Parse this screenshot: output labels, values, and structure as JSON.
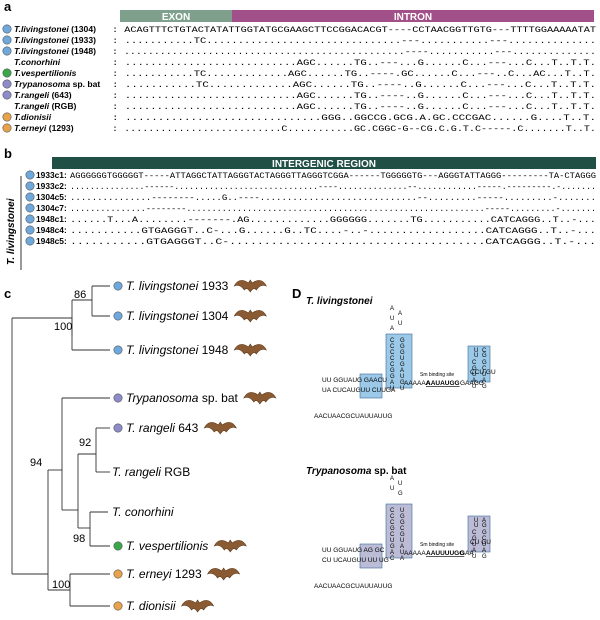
{
  "colors": {
    "blue": "#6fa8dc",
    "green": "#3aa84a",
    "purple": "#8e8cc8",
    "orange": "#e8a24a",
    "exon": "#7fa08c",
    "intron": "#a2508a",
    "intergenic": "#1f4f45",
    "box_blue": "#9cc9e8",
    "box_grey": "#bcbcd6"
  },
  "panel_a": {
    "letter": "a",
    "exon_label": "EXON",
    "intron_label": "INTRON",
    "rows": [
      {
        "dot": "blue",
        "name": "T.livingstonei",
        "suffix": " (1304)",
        "seq": ": ACAGTTTCTGTACTATATTGGTATGCGAAGCTTCCGGACACGT----CCTAACGGTTGTG---TTTTGGAAAAATAT"
      },
      {
        "dot": "blue",
        "name": "T.livingstonei",
        "suffix": " (1933)",
        "seq": ": ...........TC...............................---...........---.............."
      },
      {
        "dot": "blue",
        "name": "T.livingstonei",
        "suffix": " (1948)",
        "seq": ": ...............................................----...........---.............."
      },
      {
        "dot": "",
        "name": "T.conorhini",
        "suffix": "",
        "seq": ": ...........................AGC......TG..---...G......C...---...C...T..T.T."
      },
      {
        "dot": "green",
        "name": "T.vespertilionis",
        "suffix": "",
        "seq": ": ...........TC.............AGC......TG..----.GC......C...---..C...AC...T..T."
      },
      {
        "dot": "purple",
        "name": "Trypanosoma",
        "suffix": " sp. bat",
        "seq": ": ...........TC.............AGC......TG..----..G......C...---...C...T..T.T."
      },
      {
        "dot": "purple",
        "name": "T.rangeli",
        "suffix": " (643)",
        "seq": ": ...........................AGC......TG..----..G......C...---...C...T..T.T."
      },
      {
        "dot": "",
        "name": "T.rangeli",
        "suffix": " (RGB)",
        "seq": ": ...........................AGC......TG..----..G......C...---...C...T..T.T."
      },
      {
        "dot": "orange",
        "name": "T.dionisii",
        "suffix": "",
        "seq": ": ..............................GGG..GGCCG.GCG.A.GC.CCCGAC......G....T..T."
      },
      {
        "dot": "orange",
        "name": "T.erneyi",
        "suffix": " (1293)",
        "seq": ": ..........................C...........GC.CGGC-G--CG.C.G.T.C-----.C.......T..T."
      }
    ]
  },
  "panel_b": {
    "letter": "b",
    "region_label": "INTERGENIC REGION",
    "side_label": "T. livingstonei",
    "rows": [
      {
        "name": "1933c1:",
        "seq": "AGGGGGGTGGGGGT-----ATTAGGCTATTAGGGTACTAGGGTTAGGGTCGGA------TGGGGGTG---AGGGTATTAGGG---------TA-CTAGGG"
      },
      {
        "name": "1933c2:",
        "seq": "...............------.............................----..............--............-----.---------.-......."
      },
      {
        "name": "1304c5:",
        "seq": "...............--------.....G..----.............................--.........-----.........-......."
      },
      {
        "name": "1304c7:",
        "seq": "...............--------...........................................................-----.........-......."
      },
      {
        "name": "1948c1:",
        "seq": "......T...A........-------.AG.............GGGGGG.......TG...........CATCAGGG..T..-..."
      },
      {
        "name": "1948c4:",
        "seq": "...........GTGAGGGT..C-...G......G..TC....-..-..................CATCAGGG..T..-..."
      },
      {
        "name": "1948c5:",
        "seq": "...........GTGAGGGT..C-.....................................CATCAGGG..T.-..."
      }
    ]
  },
  "panel_c": {
    "letter": "c",
    "taxa": [
      {
        "dot": "blue",
        "italic": "T. livingstonei",
        "suffix": " 1933",
        "bat": true
      },
      {
        "dot": "blue",
        "italic": "T. livingstonei",
        "suffix": " 1304",
        "bat": true
      },
      {
        "dot": "blue",
        "italic": "T. livingstonei",
        "suffix": " 1948",
        "bat": true
      },
      {
        "dot": "purple",
        "italic": "Trypanosoma",
        "suffix": " sp. bat",
        "bat": true
      },
      {
        "dot": "purple",
        "italic": "T. rangeli",
        "suffix": " 643",
        "bat": true
      },
      {
        "dot": "",
        "italic": "T. rangeli",
        "suffix": " RGB",
        "bat": false
      },
      {
        "dot": "",
        "italic": "T. conorhini",
        "suffix": "",
        "bat": false
      },
      {
        "dot": "green",
        "italic": "T. vespertilionis",
        "suffix": "",
        "bat": true
      },
      {
        "dot": "orange",
        "italic": "T. erneyi",
        "suffix": " 1293",
        "bat": true
      },
      {
        "dot": "orange",
        "italic": "T. dionisii",
        "suffix": "",
        "bat": true
      }
    ],
    "bootstrap": [
      "86",
      "100",
      "94",
      "92",
      "98",
      "100"
    ]
  },
  "panel_d": {
    "letter": "D",
    "structures": [
      {
        "title": "T. livingstonei",
        "suffix": "",
        "box": "box_blue",
        "hairpin1": {
          "loop": [
            "A",
            "A",
            "U",
            "U",
            "A"
          ],
          "left": [
            "C",
            "C",
            "C",
            "C",
            "C",
            "G",
            "G",
            "A",
            "U"
          ],
          "right": [
            "G",
            "G",
            "G",
            "U",
            "G",
            "A",
            "U",
            "G",
            "U"
          ]
        },
        "hairpin2": {
          "loop": [
            "U",
            "C",
            "U",
            "G"
          ],
          "left": [
            "C",
            "G",
            "U",
            "A",
            "U"
          ],
          "right": [
            "G",
            "C",
            "U",
            "A",
            "G"
          ]
        },
        "stem_left_top": "UU GGUAUG GAACU",
        "stem_left_bot": "UA CUCAUGUU CUUGA",
        "tail": "AACUAACGCUAUUAUUG",
        "sm_label": "Sm binding site",
        "sm_seq": "AAUAUGG",
        "mid_seq": "AAAAAA",
        "end_seq": "GAAGG",
        "branch": "CCU GU"
      },
      {
        "title": "Trypanosoma",
        "suffix": " sp. bat",
        "box": "box_grey",
        "hairpin1": {
          "loop": [
            "A",
            "U",
            "U",
            "G"
          ],
          "left": [
            "C",
            "C",
            "C",
            "G",
            "C",
            "U",
            "G",
            "A",
            "C"
          ],
          "right": [
            "U",
            "G",
            "G",
            "C",
            "G",
            "U",
            "A",
            "U",
            "A"
          ]
        },
        "hairpin2": {
          "loop": [
            "U",
            "A",
            "U",
            "G"
          ],
          "left": [
            "C",
            "G",
            "U",
            "A",
            "U"
          ],
          "right": [
            "G",
            "C",
            "U",
            "A",
            "G"
          ]
        },
        "stem_left_top": "UU GGUAUG AG GC",
        "stem_left_bot": "CU UCAUGUU UU UG",
        "tail": "AACUAACGCUAUUAUUG",
        "sm_label": "Sm binding site",
        "sm_seq": "AAUUUUGG",
        "mid_seq": "AAAAA",
        "end_seq": "GAA",
        "branch": "CU GU"
      }
    ]
  }
}
